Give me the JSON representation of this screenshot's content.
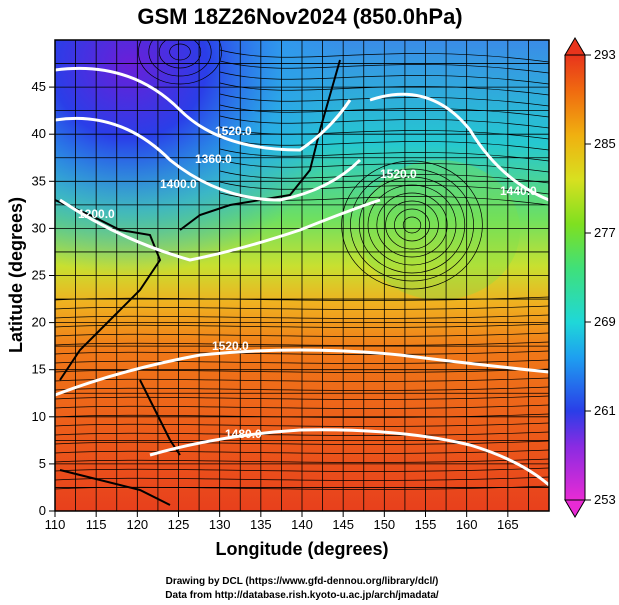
{
  "chart_data": {
    "type": "heatmap",
    "title": "GSM 18Z26Nov2024 (850.0hPa)",
    "xlabel": "Longitude (degrees)",
    "ylabel": "Latitude  (degrees)",
    "xlim": [
      110,
      170
    ],
    "ylim": [
      0,
      50
    ],
    "x_ticks": [
      "110",
      "115",
      "120",
      "125",
      "130",
      "135",
      "140",
      "145",
      "150",
      "155",
      "160",
      "165"
    ],
    "y_ticks": [
      "0",
      "5",
      "10",
      "15",
      "20",
      "25",
      "30",
      "35",
      "40",
      "45"
    ],
    "colorbar": {
      "ticks": [
        "253",
        "261",
        "269",
        "277",
        "285",
        "293"
      ],
      "min": 253,
      "max": 293
    },
    "contour_labels": [
      "1520.0",
      "1360.0",
      "1400.0",
      "1520.0",
      "1520.0",
      "1480.0",
      "1200.0",
      "1440.0"
    ],
    "credits": [
      "Drawing by DCL (https://www.gfd-dennou.org/library/dcl/)",
      "Data from http://database.rish.kyoto-u.ac.jp/arch/jmadata/"
    ]
  }
}
